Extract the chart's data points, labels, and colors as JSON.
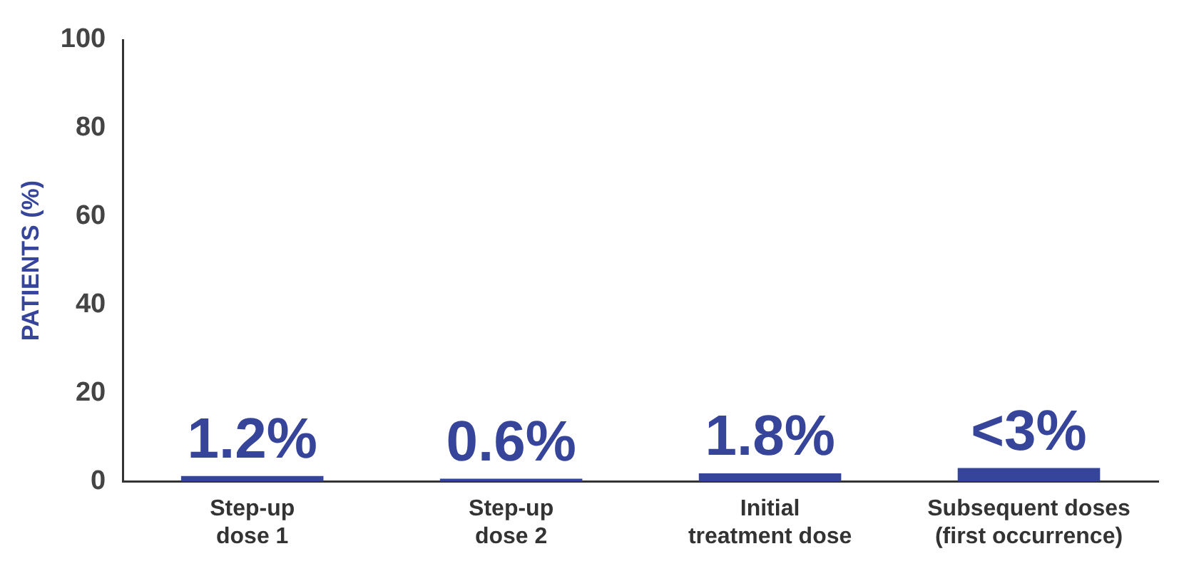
{
  "chart_data": {
    "type": "bar",
    "ylabel": "PATIENTS (%)",
    "categories": [
      "Step-up\ndose 1",
      "Step-up\ndose 2",
      "Initial\ntreatment dose",
      "Subsequent doses\n(first occurrence)"
    ],
    "values": [
      1.2,
      0.6,
      1.8,
      3
    ],
    "color": "#36459a",
    "value_labels": [
      "1.2%",
      "0.6%",
      "1.8%",
      "<3%"
    ],
    "ylim": [
      0,
      100
    ],
    "yticks": [
      0,
      20,
      40,
      60,
      80,
      100
    ],
    "grid": false,
    "legend": false
  }
}
